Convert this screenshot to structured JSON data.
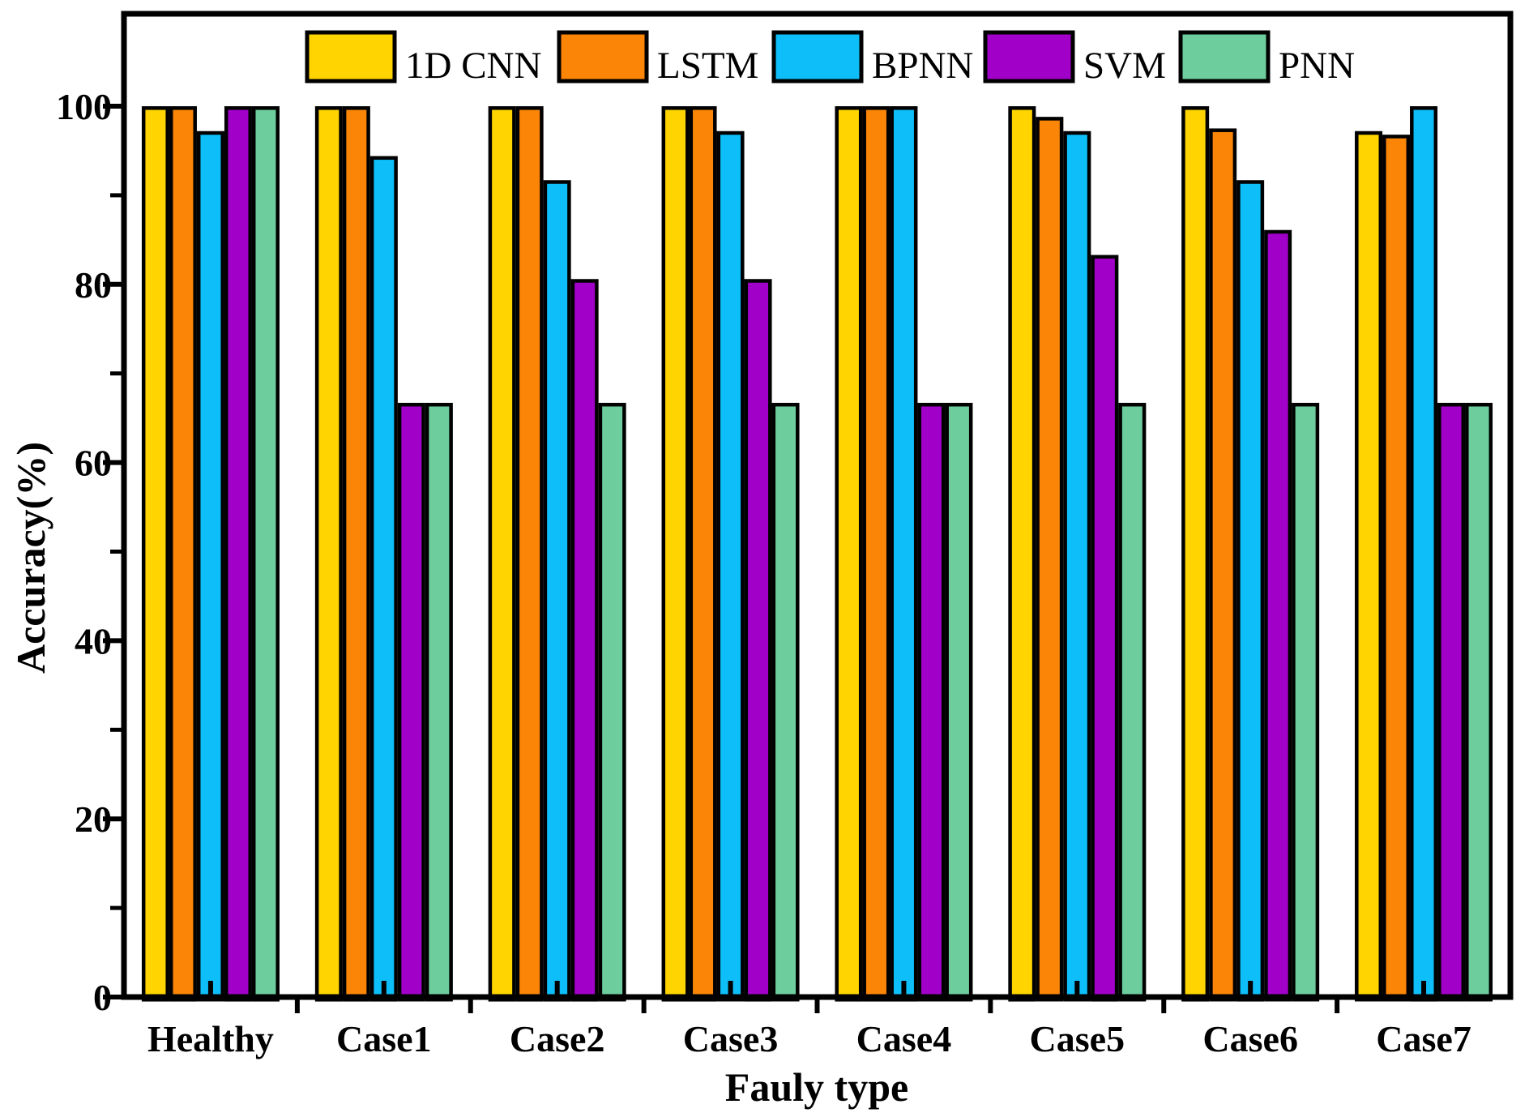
{
  "chart_data": {
    "type": "bar",
    "title": "",
    "xlabel": "Fauly type",
    "ylabel": "Accuracy(%)",
    "categories": [
      "Healthy",
      "Case1",
      "Case2",
      "Case3",
      "Case4",
      "Case5",
      "Case6",
      "Case7"
    ],
    "series": [
      {
        "name": "1D CNN",
        "color": "#FFD400",
        "values": [
          100,
          100,
          100,
          100,
          100,
          100,
          100,
          97.2
        ]
      },
      {
        "name": "LSTM",
        "color": "#FB8506",
        "values": [
          100,
          100,
          100,
          100,
          100,
          98.8,
          97.5,
          96.8
        ]
      },
      {
        "name": "BPNN",
        "color": "#0DBEF8",
        "values": [
          97.2,
          94.4,
          91.7,
          97.2,
          100,
          97.2,
          91.7,
          100
        ]
      },
      {
        "name": "SVM",
        "color": "#A100C8",
        "values": [
          100,
          66.7,
          80.6,
          80.6,
          66.7,
          83.3,
          86.1,
          66.7
        ]
      },
      {
        "name": "PNN",
        "color": "#6DCD9C",
        "values": [
          100,
          66.7,
          66.7,
          66.7,
          66.7,
          66.7,
          66.7,
          66.7
        ]
      }
    ],
    "ylim": [
      0,
      110
    ],
    "yticks": [
      0,
      20,
      40,
      60,
      80,
      100
    ],
    "yticks_minor": [
      10,
      30,
      50,
      70,
      90
    ],
    "grid": false,
    "legend_position": "top-inside",
    "bar_outline_color": "#000000",
    "axis_color": "#000000"
  }
}
